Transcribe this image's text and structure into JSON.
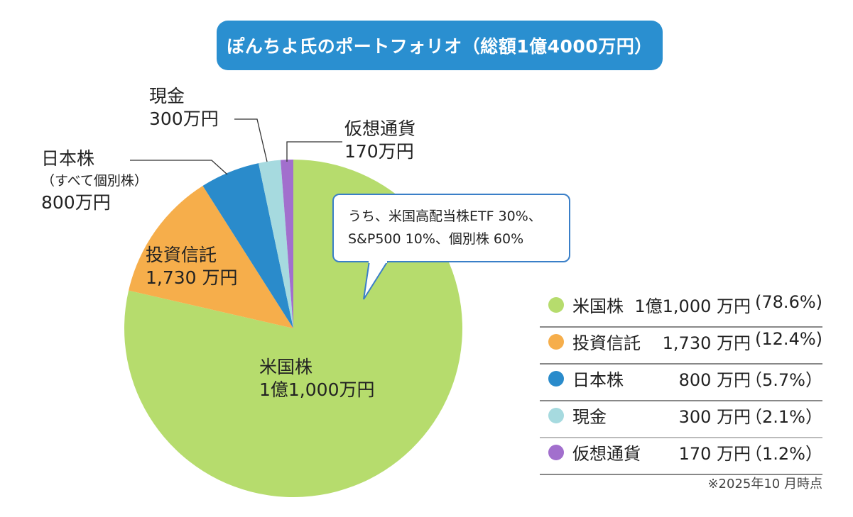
{
  "chart_data": {
    "type": "pie",
    "title": "ぽんちよ氏のポートフォリオ（総額1億4000万円）",
    "start": "top",
    "direction": "clockwise",
    "slices": [
      {
        "name": "米国株",
        "value": 11000,
        "percent": 78.6,
        "amount_label": "1億1,000万円",
        "legend_amount": "1億1,000 万円",
        "legend_pct": "(78.6%)",
        "color": "#b6dc6d"
      },
      {
        "name": "投資信託",
        "value": 1730,
        "percent": 12.4,
        "amount_label": "1,730 万円",
        "legend_amount": "1,730 万円",
        "legend_pct": "(12.4%)",
        "color": "#f6ae4b"
      },
      {
        "name": "日本株",
        "value": 800,
        "percent": 5.7,
        "amount_label": "800万円",
        "sub_label": "（すべて個別株）",
        "legend_amount": "800 万円",
        "legend_pct": "（5.7%）",
        "color": "#2a8bcb"
      },
      {
        "name": "現金",
        "value": 300,
        "percent": 2.1,
        "amount_label": "300万円",
        "legend_amount": "300 万円",
        "legend_pct": "（2.1%）",
        "color": "#a6dadf"
      },
      {
        "name": "仮想通貨",
        "value": 170,
        "percent": 1.2,
        "amount_label": "170万円",
        "legend_amount": "170 万円",
        "legend_pct": "（1.2%）",
        "color": "#a26fcd"
      }
    ],
    "annotation": {
      "line1": "うち、米国高配当株ETF 30%、",
      "line2": "S&P500 10%、個別株 60%"
    },
    "note": "※2025年10 月時点",
    "legend_position": "bottom-right"
  },
  "colors": {
    "title_bg": "#2a8fd0",
    "bubble_border": "#3a7fc8"
  }
}
